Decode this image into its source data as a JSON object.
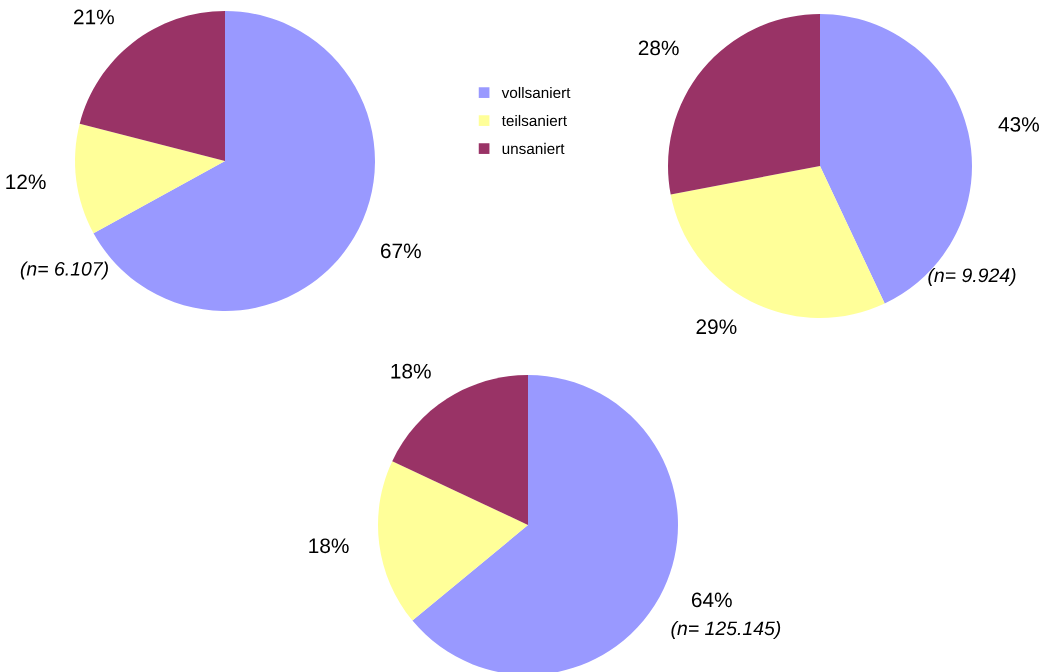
{
  "chart_data": [
    {
      "type": "pie",
      "categories": [
        "vollsaniert",
        "teilsaniert",
        "unsaniert"
      ],
      "values": [
        67,
        12,
        21
      ],
      "colors": [
        "#9999ff",
        "#ffff99",
        "#993366"
      ],
      "value_labels": [
        "67%",
        "12%",
        "21%"
      ],
      "annotations": [
        "(n= 6.107)"
      ],
      "legend": "right"
    },
    {
      "type": "pie",
      "categories": [
        null,
        null,
        null
      ],
      "values": [
        43,
        29,
        28
      ],
      "colors": [
        "#9999ff",
        "#ffff99",
        "#993366"
      ],
      "value_labels": [
        "43%",
        "29%",
        "28%"
      ],
      "annotations": [
        "(n= 9.924)"
      ]
    },
    {
      "type": "pie",
      "categories": [
        null,
        null,
        null
      ],
      "values": [
        64,
        18,
        18
      ],
      "colors": [
        "#9999ff",
        "#ffff99",
        "#993366"
      ],
      "value_labels": [
        "64%",
        "18%",
        "18%"
      ],
      "annotations": [
        "(n= 125.145)"
      ]
    }
  ]
}
